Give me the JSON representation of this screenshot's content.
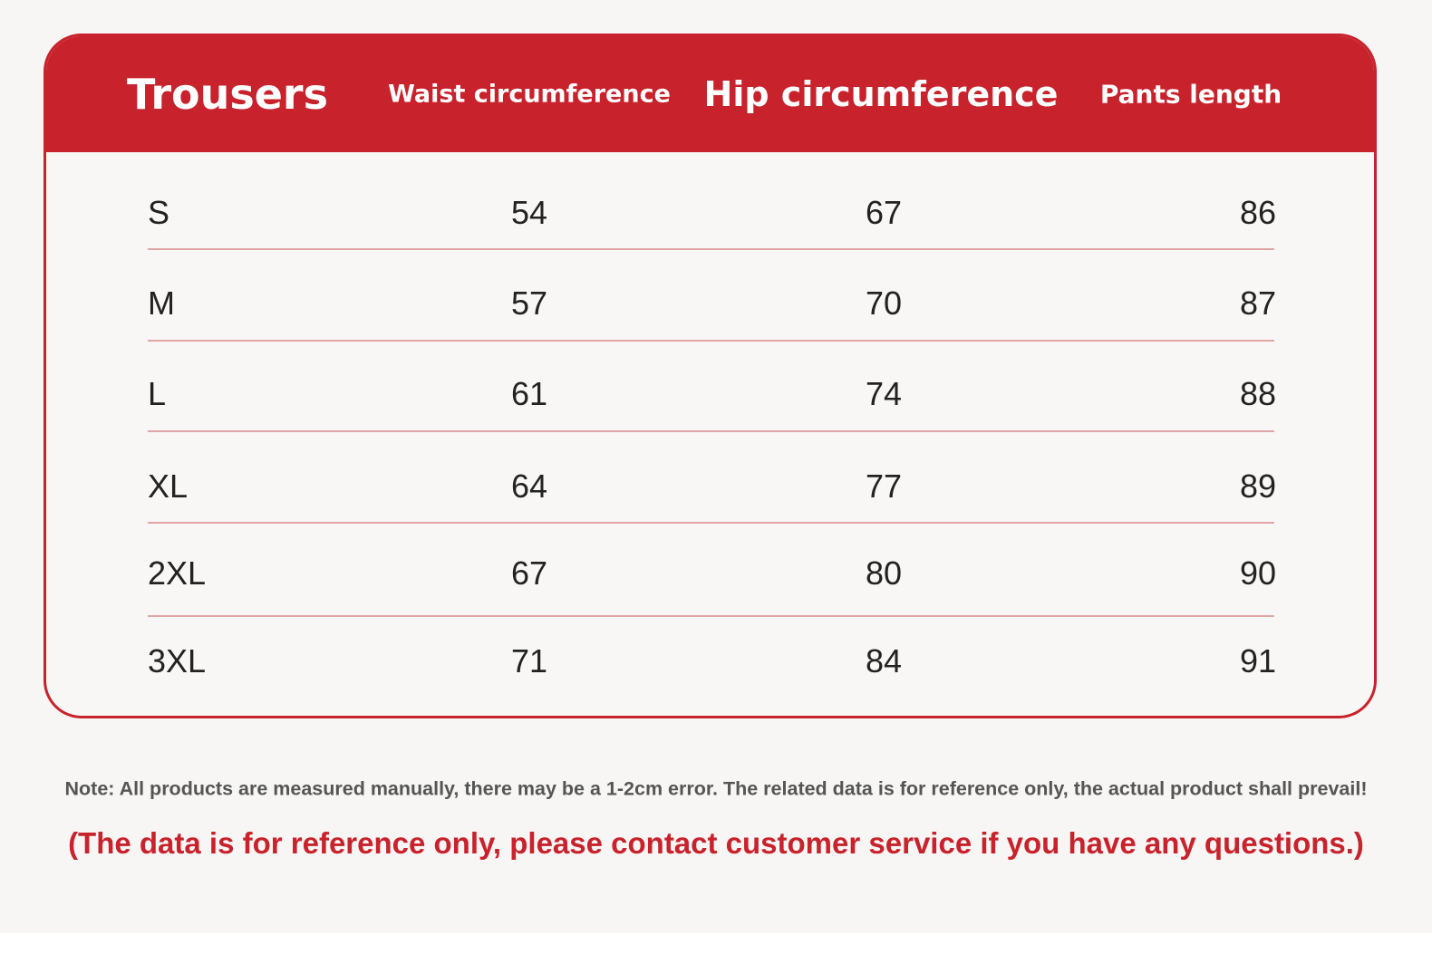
{
  "table": {
    "header": [
      "Trousers",
      "Waist circumference",
      "Hip circumference",
      "Pants length"
    ],
    "rows": [
      [
        "S",
        54,
        67,
        86
      ],
      [
        "M",
        57,
        70,
        87
      ],
      [
        "L",
        61,
        74,
        88
      ],
      [
        "XL",
        64,
        77,
        89
      ],
      [
        "2XL",
        67,
        80,
        90
      ],
      [
        "3XL",
        71,
        84,
        91
      ]
    ]
  },
  "note": "Note: All products are measured manually, there may be a 1-2cm error. The related data is for reference only, the actual product shall prevail!",
  "disclaimer": "(The data is for reference only, please contact customer service if you have any questions.)"
}
